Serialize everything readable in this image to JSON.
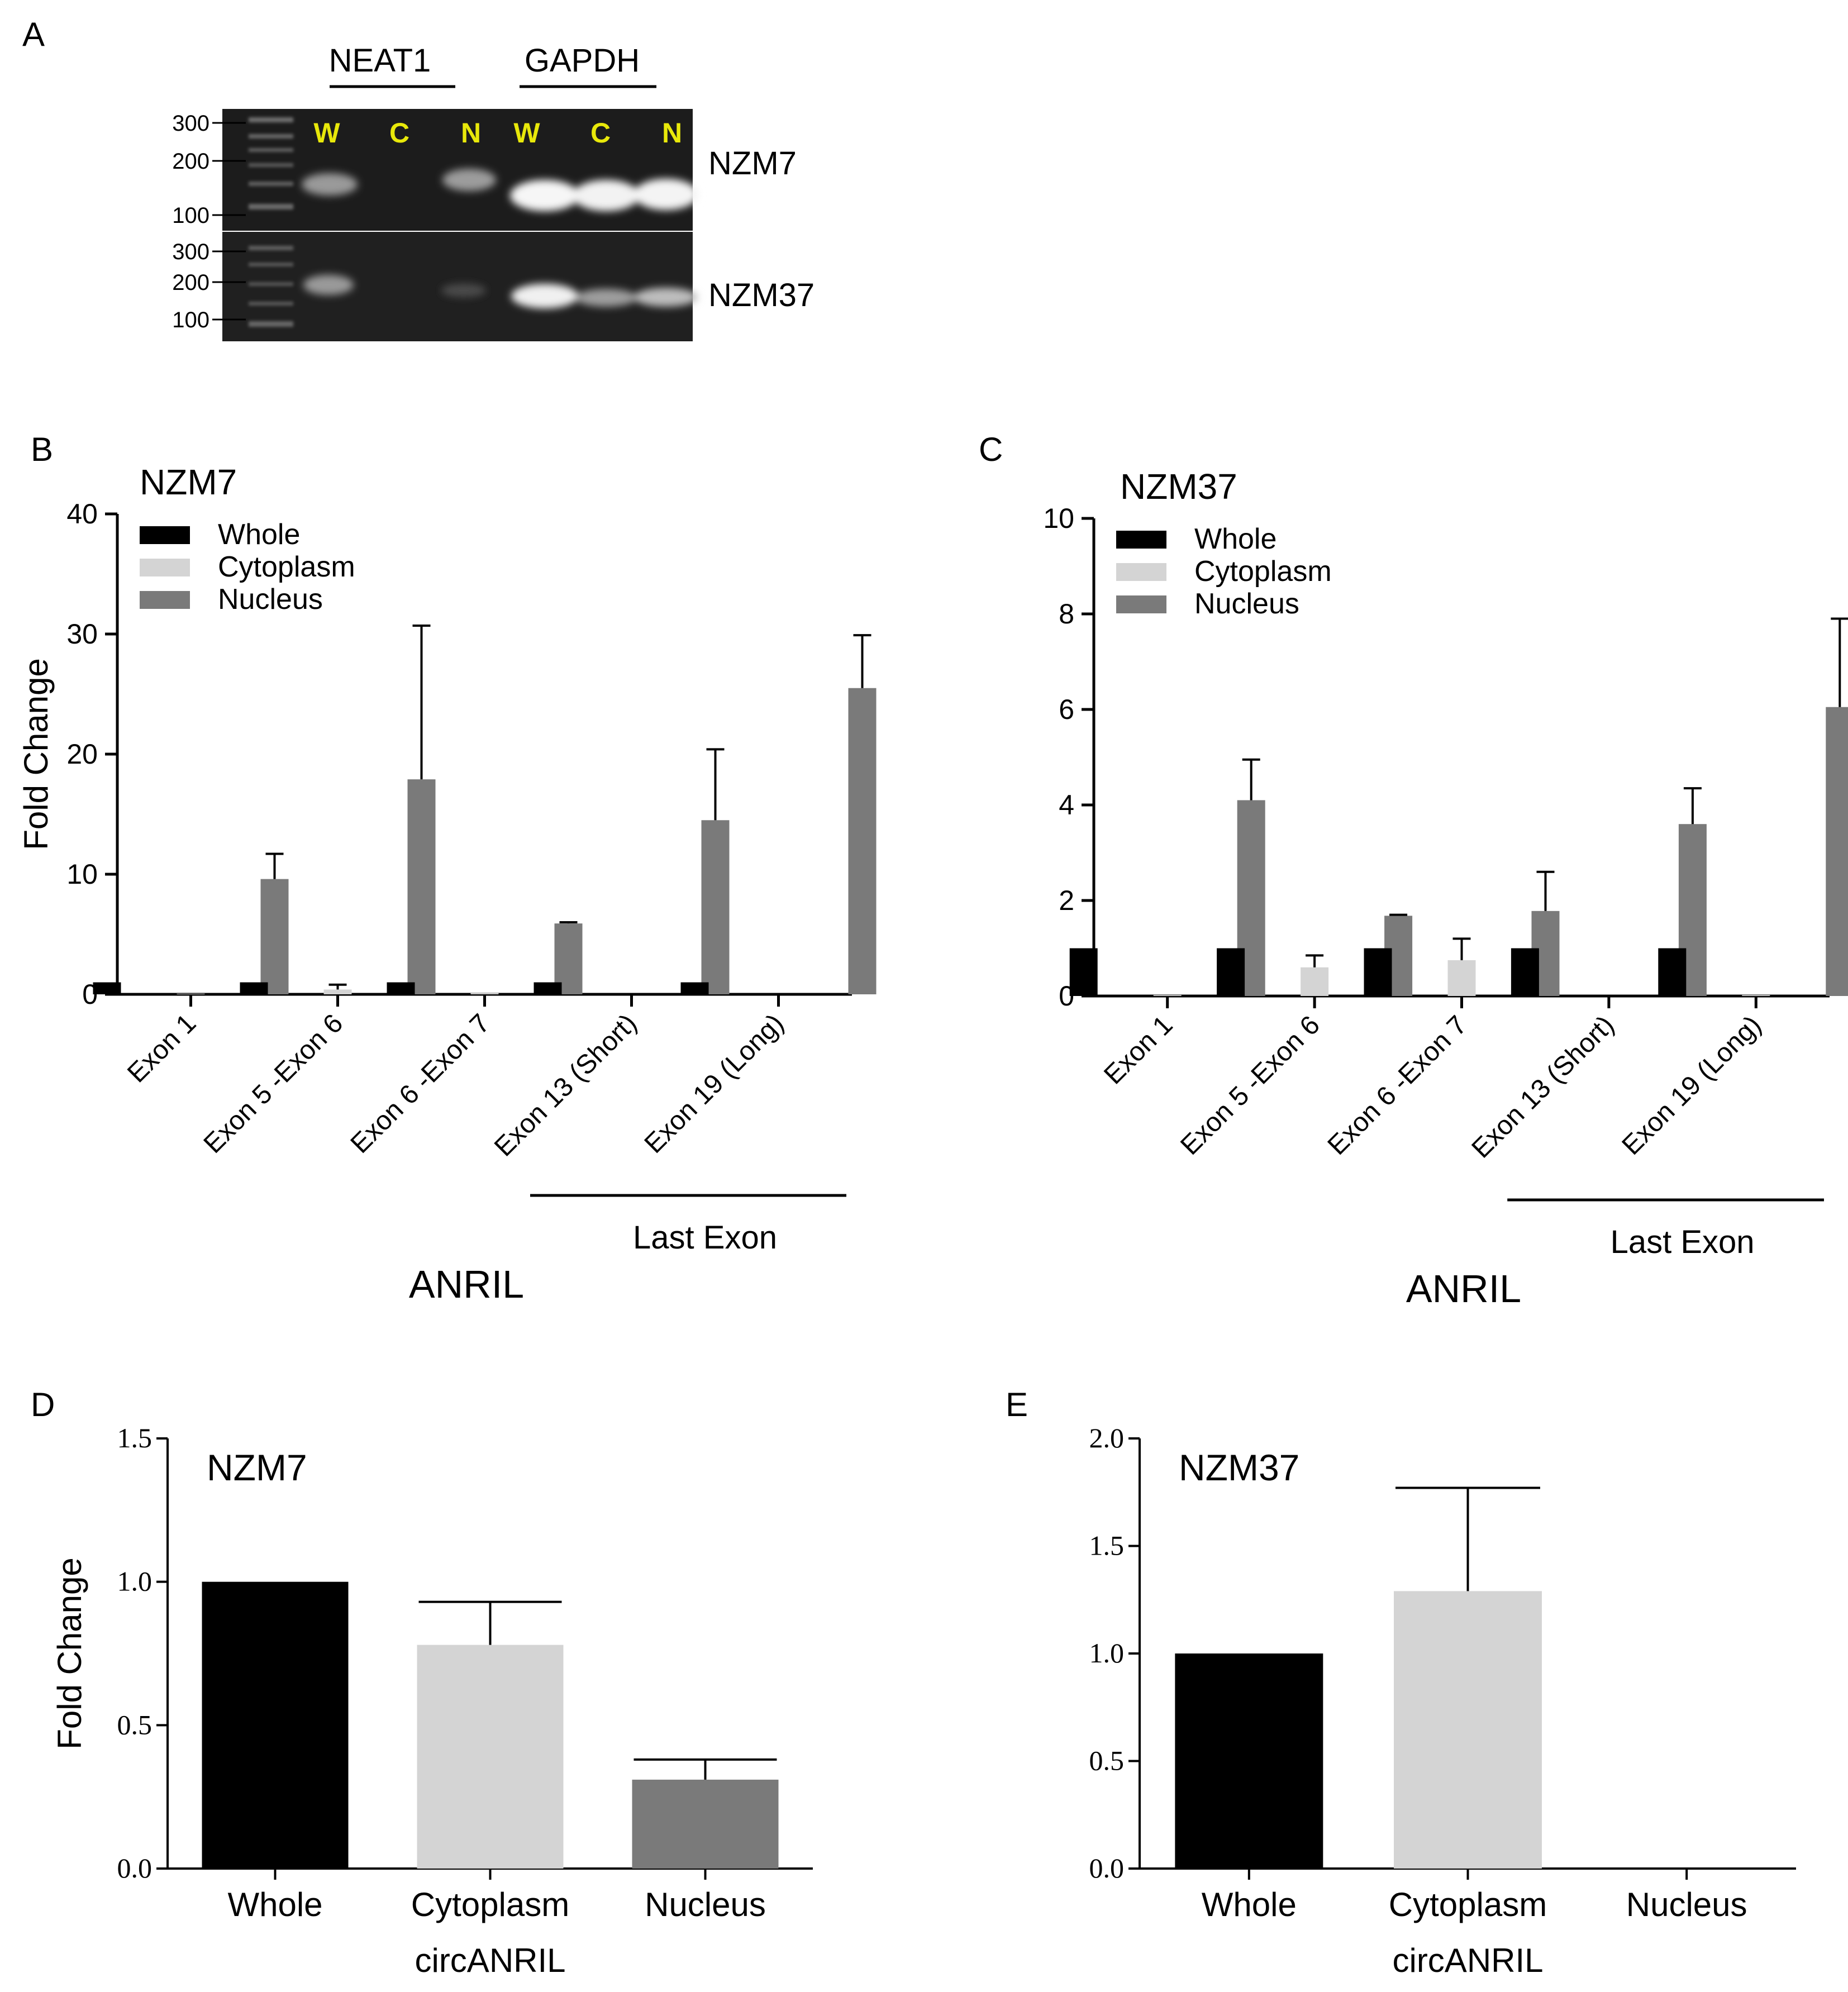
{
  "panel_letters": {
    "a": "A",
    "b": "B",
    "c": "C",
    "d": "D",
    "e": "E"
  },
  "gel": {
    "header_left": "NEAT1",
    "header_right": "GAPDH",
    "lane_labels": [
      "W",
      "C",
      "N",
      "W",
      "C",
      "N"
    ],
    "row_labels": [
      "NZM7",
      "NZM37"
    ],
    "ladder_top": [
      "300",
      "200",
      "100"
    ],
    "ladder_bottom": [
      "300",
      "200",
      "100"
    ],
    "label_color": "#e8e80a"
  },
  "chart_data": [
    {
      "id": "B",
      "type": "bar",
      "title": "NZM7",
      "ylabel": "Fold Change",
      "xlabel": "ANRIL",
      "group_label": "Last Exon",
      "ylim": [
        0,
        40
      ],
      "yticks": [
        "0",
        "10",
        "20",
        "30",
        "40"
      ],
      "categories": [
        "Exon 1",
        "Exon 5 -Exon 6",
        "Exon 6 -Exon 7",
        "Exon 13 (Short)",
        "Exon 19 (Long)"
      ],
      "series": [
        {
          "name": "Whole",
          "color": "#000000",
          "values": [
            1.0,
            1.0,
            1.0,
            1.0,
            1.0
          ],
          "errors": [
            0,
            0,
            0,
            0,
            0
          ]
        },
        {
          "name": "Cytoplasm",
          "color": "#d4d4d4",
          "values": [
            0.05,
            0.4,
            0.1,
            0.0,
            0.0
          ],
          "errors": [
            0,
            0.4,
            0,
            0,
            0
          ]
        },
        {
          "name": "Nucleus",
          "color": "#7a7a7a",
          "values": [
            9.6,
            17.9,
            5.9,
            14.5,
            25.5
          ],
          "errors": [
            2.1,
            12.8,
            0.1,
            5.9,
            4.4
          ]
        }
      ]
    },
    {
      "id": "C",
      "type": "bar",
      "title": "NZM37",
      "ylabel": "",
      "xlabel": "ANRIL",
      "group_label": "Last Exon",
      "ylim": [
        0,
        10
      ],
      "yticks": [
        "0",
        "2",
        "4",
        "6",
        "8",
        "10"
      ],
      "categories": [
        "Exon 1",
        "Exon 5 -Exon 6",
        "Exon 6 -Exon 7",
        "Exon 13 (Short)",
        "Exon 19 (Long)"
      ],
      "series": [
        {
          "name": "Whole",
          "color": "#000000",
          "values": [
            1.0,
            1.0,
            1.0,
            1.0,
            1.0
          ],
          "errors": [
            0,
            0,
            0,
            0,
            0
          ]
        },
        {
          "name": "Cytoplasm",
          "color": "#d4d4d4",
          "values": [
            0.02,
            0.6,
            0.75,
            0.0,
            0.02
          ],
          "errors": [
            0,
            0.25,
            0.45,
            0,
            0
          ]
        },
        {
          "name": "Nucleus",
          "color": "#7a7a7a",
          "values": [
            4.1,
            1.68,
            1.78,
            3.6,
            6.05
          ],
          "errors": [
            0.85,
            0.02,
            0.82,
            0.75,
            1.85
          ]
        }
      ]
    },
    {
      "id": "D",
      "type": "bar",
      "title": "NZM7",
      "ylabel": "Fold Change",
      "xlabel": "circANRIL",
      "ylim": [
        0,
        1.5
      ],
      "yticks": [
        "0.0",
        "0.5",
        "1.0",
        "1.5"
      ],
      "categories": [
        "Whole",
        "Cytoplasm",
        "Nucleus"
      ],
      "values": [
        1.0,
        0.78,
        0.31
      ],
      "errors": [
        0,
        0.15,
        0.07
      ],
      "colors": [
        "#000000",
        "#d4d4d4",
        "#7a7a7a"
      ]
    },
    {
      "id": "E",
      "type": "bar",
      "title": "NZM37",
      "ylabel": "",
      "xlabel": "circANRIL",
      "ylim": [
        0,
        2.0
      ],
      "yticks": [
        "0.0",
        "0.5",
        "1.0",
        "1.5",
        "2.0"
      ],
      "categories": [
        "Whole",
        "Cytoplasm",
        "Nucleus"
      ],
      "values": [
        1.0,
        1.29,
        0.0
      ],
      "errors": [
        0,
        0.48,
        0
      ],
      "colors": [
        "#000000",
        "#d4d4d4",
        "#7a7a7a"
      ]
    }
  ]
}
